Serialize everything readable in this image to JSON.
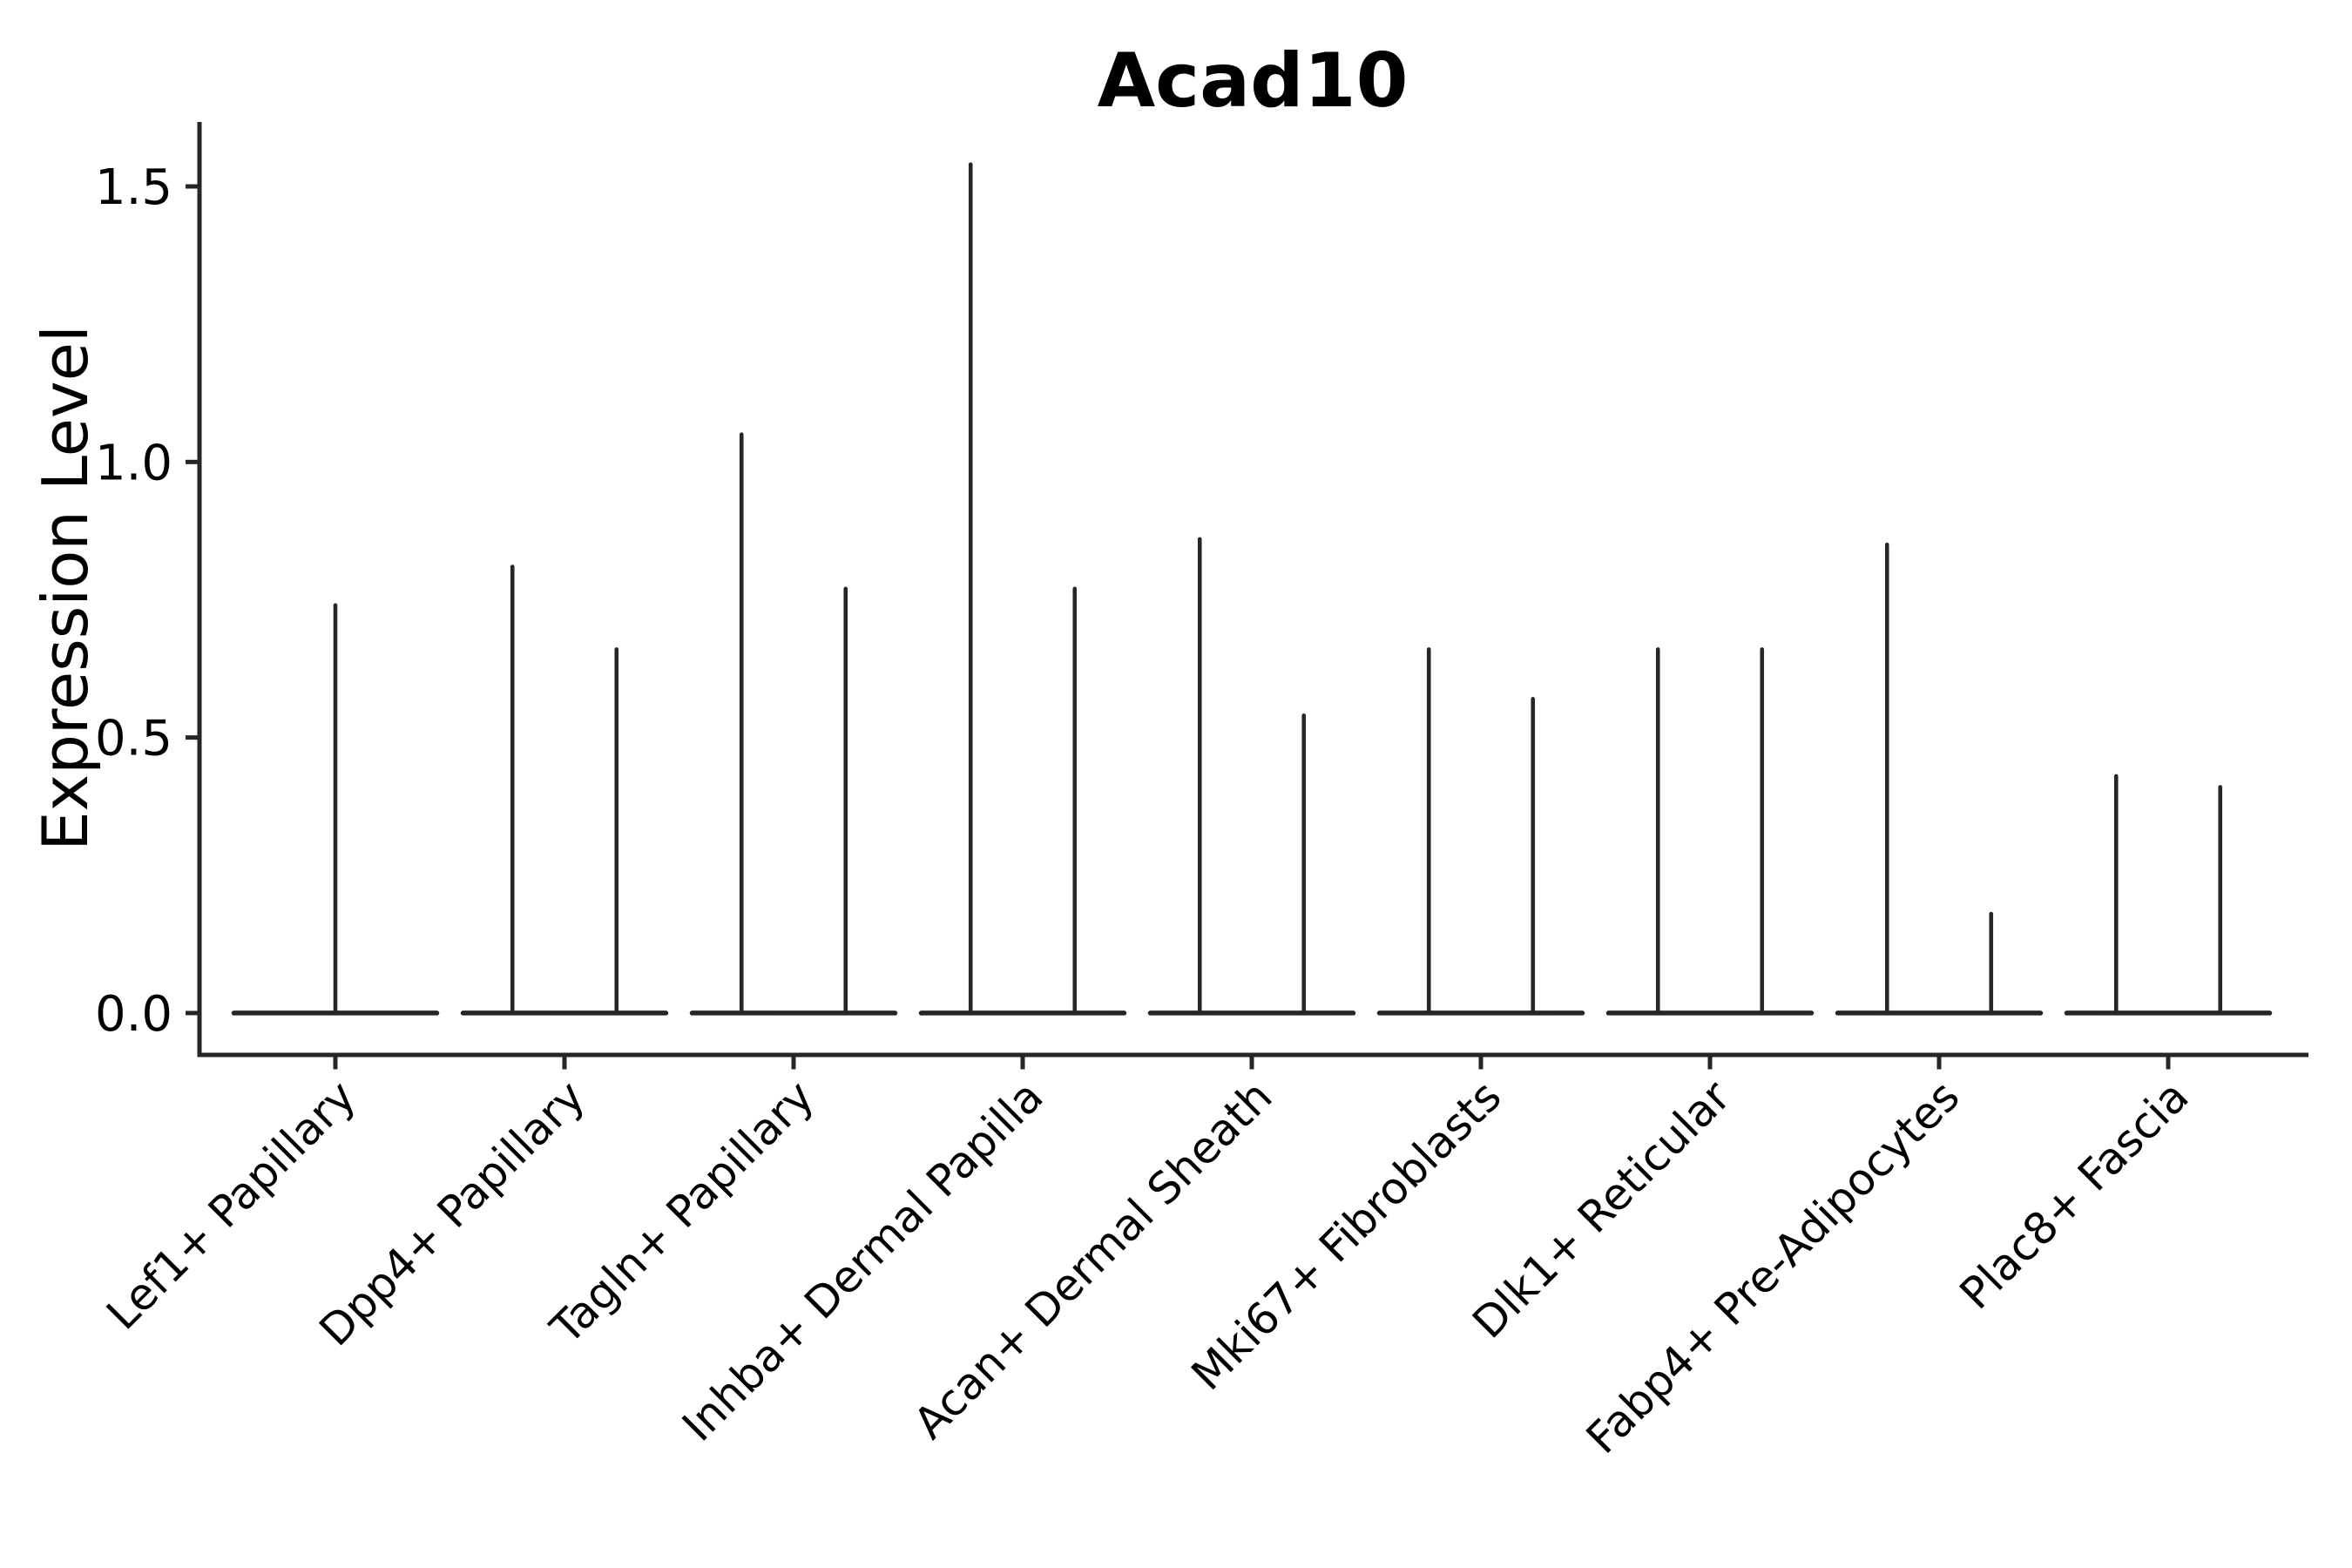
{
  "chart_data": {
    "type": "violin",
    "title": "Acad10",
    "ylabel": "Expression Level",
    "xlabel": "",
    "grid": false,
    "legend": false,
    "line_color": "#262626",
    "text_color": "#000000",
    "ytick_labels": [
      "0.0",
      "0.5",
      "1.0",
      "1.5"
    ],
    "ytick_values": [
      0.0,
      0.5,
      1.0,
      1.5
    ],
    "ylim": [
      -0.076,
      1.617
    ],
    "categories": [
      "Lef1+ Papillary",
      "Dpp4+ Papillary",
      "Tagln+ Papillary",
      "Inhba+ Dermal Papilla",
      "Acan+ Dermal Sheath",
      "Mki67+ Fibroblasts",
      "Dlk1+ Reticular",
      "Fabp4+ Pre-Adipocytes",
      "Plac8+ Fascia"
    ],
    "violins": [
      {
        "category": "Lef1+ Papillary",
        "spikes": [
          {
            "rel_x": 0.5,
            "peak": 0.74
          }
        ]
      },
      {
        "category": "Dpp4+ Papillary",
        "spikes": [
          {
            "rel_x": 0.25,
            "peak": 0.81
          },
          {
            "rel_x": 0.75,
            "peak": 0.66
          }
        ]
      },
      {
        "category": "Tagln+ Papillary",
        "spikes": [
          {
            "rel_x": 0.25,
            "peak": 1.05
          },
          {
            "rel_x": 0.75,
            "peak": 0.77
          }
        ]
      },
      {
        "category": "Inhba+ Dermal Papilla",
        "spikes": [
          {
            "rel_x": 0.25,
            "peak": 1.54
          },
          {
            "rel_x": 0.75,
            "peak": 0.77
          }
        ]
      },
      {
        "category": "Acan+ Dermal Sheath",
        "spikes": [
          {
            "rel_x": 0.25,
            "peak": 0.86
          },
          {
            "rel_x": 0.75,
            "peak": 0.54
          }
        ]
      },
      {
        "category": "Mki67+ Fibroblasts",
        "spikes": [
          {
            "rel_x": 0.25,
            "peak": 0.66
          },
          {
            "rel_x": 0.75,
            "peak": 0.57
          }
        ]
      },
      {
        "category": "Dlk1+ Reticular",
        "spikes": [
          {
            "rel_x": 0.25,
            "peak": 0.66
          },
          {
            "rel_x": 0.75,
            "peak": 0.66
          }
        ]
      },
      {
        "category": "Fabp4+ Pre-Adipocytes",
        "spikes": [
          {
            "rel_x": 0.25,
            "peak": 0.85
          },
          {
            "rel_x": 0.75,
            "peak": 0.18
          }
        ]
      },
      {
        "category": "Plac8+ Fascia",
        "spikes": [
          {
            "rel_x": 0.25,
            "peak": 0.43
          },
          {
            "rel_x": 0.75,
            "peak": 0.41
          }
        ]
      }
    ]
  }
}
